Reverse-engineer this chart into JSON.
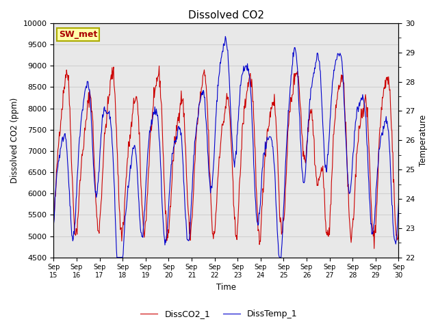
{
  "title": "Dissolved CO2",
  "xlabel": "Time",
  "ylabel_left": "Dissolved CO2 (ppm)",
  "ylabel_right": "Temperature",
  "annotation": "SW_met",
  "ylim_left": [
    4500,
    10000
  ],
  "ylim_right": [
    22.0,
    30.0
  ],
  "xtick_labels": [
    "Sep\n15",
    "Sep\n16",
    "Sep\n17",
    "Sep\n18",
    "Sep\n19",
    "Sep\n20",
    "Sep\n21",
    "Sep\n22",
    "Sep\n23",
    "Sep\n24",
    "Sep\n25",
    "Sep\n26",
    "Sep\n27",
    "Sep\n28",
    "Sep\n29",
    "Sep\n30"
  ],
  "yticks_left": [
    4500,
    5000,
    5500,
    6000,
    6500,
    7000,
    7500,
    8000,
    8500,
    9000,
    9500,
    10000
  ],
  "yticks_right": [
    22.0,
    23.0,
    24.0,
    25.0,
    26.0,
    27.0,
    28.0,
    29.0,
    30.0
  ],
  "grid_color": "#d0d0d0",
  "bg_color": "#e8e8e8",
  "line1_color": "#cc0000",
  "line2_color": "#0000cc",
  "legend1": "DissCO2_1",
  "legend2": "DissTemp_1",
  "annotation_text_color": "#aa0000",
  "annotation_face_color": "#ffffaa",
  "annotation_edge_color": "#aaaa00"
}
